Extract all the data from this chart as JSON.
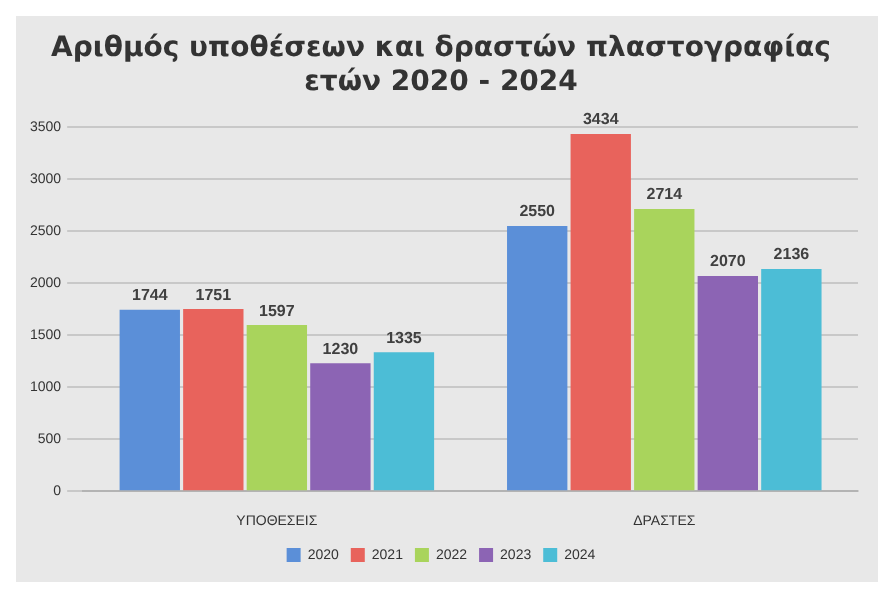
{
  "chart_data": {
    "type": "bar",
    "title": "Αριθμός υποθέσεων και δραστών πλαστογραφίας\nετών 2020 - 2024",
    "categories": [
      "ΥΠΟΘΕΣΕΙΣ",
      "ΔΡΑΣΤΕΣ"
    ],
    "series": [
      {
        "name": "2020",
        "color": "#5b8fd8",
        "values": [
          1744,
          2550
        ]
      },
      {
        "name": "2021",
        "color": "#e8635c",
        "values": [
          1751,
          3434
        ]
      },
      {
        "name": "2022",
        "color": "#a9d45c",
        "values": [
          1597,
          2714
        ]
      },
      {
        "name": "2023",
        "color": "#8c64b4",
        "values": [
          1230,
          2070
        ]
      },
      {
        "name": "2024",
        "color": "#4cbdd6",
        "values": [
          1335,
          2136
        ]
      }
    ],
    "ylim": [
      0,
      3500
    ],
    "yticks": [
      0,
      500,
      1000,
      1500,
      2000,
      2500,
      3000,
      3500
    ],
    "grid": "y",
    "legend": "bottom",
    "data_labels": true
  }
}
